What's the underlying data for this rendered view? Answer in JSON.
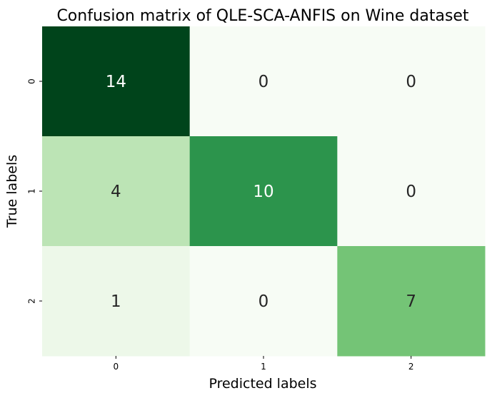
{
  "chart_data": {
    "type": "heatmap",
    "title": "Confusion matrix of QLE-SCA-ANFIS on Wine dataset",
    "xlabel": "Predicted labels",
    "ylabel": "True labels",
    "x_categories": [
      "0",
      "1",
      "2"
    ],
    "y_categories": [
      "0",
      "1",
      "2"
    ],
    "values": [
      [
        14,
        0,
        0
      ],
      [
        4,
        10,
        0
      ],
      [
        1,
        0,
        7
      ]
    ],
    "colorbar": false,
    "colormap": "Greens",
    "color_range": [
      0,
      14
    ],
    "colors": {
      "low": "#f7fcf5",
      "high": "#00441b",
      "dark_text": "#262626",
      "light_text": "#ffffff"
    }
  }
}
